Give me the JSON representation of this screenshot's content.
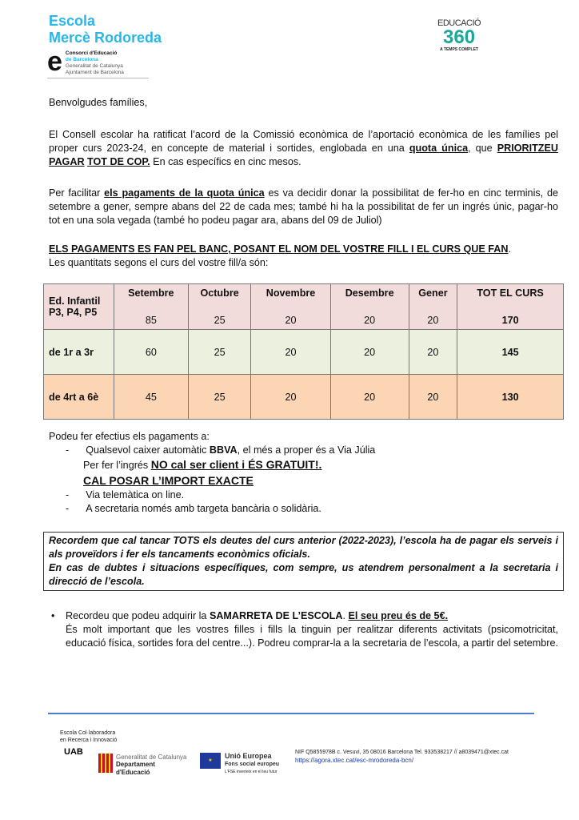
{
  "header": {
    "school_line1": "Escola",
    "school_line2": "Mercè Rodoreda",
    "consorci": [
      "Consorci d'Educació",
      "de Barcelona",
      "Generalitat de Catalunya",
      "Ajuntament de Barcelona"
    ],
    "edu360": [
      "EDUCACIÓ",
      "360",
      "A TEMPS COMPLET"
    ]
  },
  "letter": {
    "greeting": "Benvolgudes famílies,",
    "p1a": "El Consell escolar ha ratificat l’acord de la Comissió econòmica de l’aportació econòmica de les famílies pel proper curs 2023-24, en concepte de material i sortides, englobada en una ",
    "p1b": "quota única",
    "p1c": ", que ",
    "p1d": "PRIORITZEU PAGAR",
    "p1e": " ",
    "p1f": "TOT DE COP.",
    "p1g": " En cas específics en cinc mesos.",
    "p2a": "Per facilitar ",
    "p2b": "els pagaments de la quota única",
    "p2c": " es va decidir donar la possibilitat de fer-ho en cinc terminis, de setembre a gener, sempre abans del 22 de cada mes; també hi ha la possibilitat de fer un ingrés únic, pagar-ho tot en una sola vegada (també ho podeu pagar ara, abans del 09 de Juliol)",
    "p3": "ELS PAGAMENTS ES FAN PEL BANC, POSANT EL NOM DEL VOSTRE FILL I EL CURS QUE FAN",
    "p3end": ".",
    "p4": "Les quantitats segons el curs del vostre fill/a són:"
  },
  "table": {
    "headers": [
      "Setembre",
      "Octubre",
      "Novembre",
      "Desembre",
      "Gener",
      "TOT EL CURS"
    ],
    "rows": [
      {
        "label": "Ed. Infantil P3, P4, P5",
        "values": [
          "85",
          "25",
          "20",
          "20",
          "20",
          "170"
        ]
      },
      {
        "label": "de 1r a 3r",
        "values": [
          "60",
          "25",
          "20",
          "20",
          "20",
          "145"
        ]
      },
      {
        "label": "de 4rt a 6è",
        "values": [
          "45",
          "25",
          "20",
          "20",
          "20",
          "130"
        ]
      }
    ]
  },
  "payment": {
    "intro": "Podeu fer efectius els pagaments a:",
    "item1a": "Qualsevol caixer automàtic ",
    "item1b": "BBVA",
    "item1c": ", el més a proper és a Via Júlia",
    "item1d": "Per fer l’ingrés ",
    "item1e": "NO cal ser client i ÉS GRATUIT!.",
    "item1f": "CAL POSAR  L’IMPORT EXACTE",
    "item2": "Via telemàtica on line.",
    "item3": "A secretaria només amb targeta bancària o solidària."
  },
  "notice": {
    "p1": "Recordem que cal tancar TOTS els deutes del curs anterior (2022-2023), l’escola ha de pagar els serveis i als proveïdors i fer els tancaments econòmics oficials.",
    "p2": "En cas de dubtes i situacions específiques, com sempre, us atendrem personalment a la secretaria i direcció de l’escola."
  },
  "shirt": {
    "a": "Recordeu que podeu adquirir la ",
    "b": "SAMARRETA DE L’ESCOLA",
    "c": ". ",
    "d": "El seu preu és de 5€.",
    "e": "És molt important que les vostres filles i fills la tinguin per realitzar diferents activitats (psicomotricitat, educació física, sortides fora del centre...). Podreu comprar-la a la secretaria de l’escola, a partir del setembre."
  },
  "footer": {
    "collab": [
      "Escola Col·laboradora",
      "en Recerca i Innovació"
    ],
    "uab": "UAB",
    "gen": [
      "Generalitat de Catalunya",
      "Departament",
      "d'Educació"
    ],
    "eu": [
      "Unió Europea",
      "Fons social europeu",
      "L'FSE inverteix en el teu futur"
    ],
    "contact": "NIF Q5855978B c. Vesuvi, 35 08016 Barcelona  Tel. 933538217 //  a8039471@xtec.cat",
    "url": "https://agora.xtec.cat/esc-mrodoreda-bcn/"
  },
  "colors": {
    "school_blue": "#29b6e8",
    "row1": "#f2dcdb",
    "row2": "#ebf1de",
    "row3": "#fcd5b4",
    "footer_line": "#4a7fcf",
    "edu_teal": "#1aa89a"
  }
}
